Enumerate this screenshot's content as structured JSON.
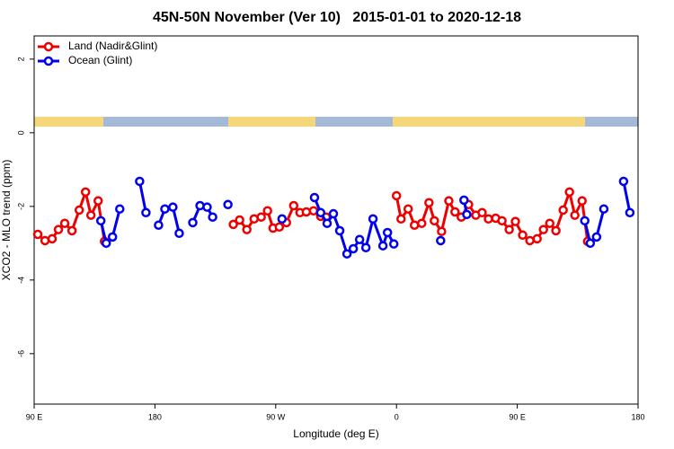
{
  "chart_data": {
    "type": "line",
    "title": "45N-50N November (Ver 10)   2015-01-01 to 2020-12-18",
    "x_label": "Longitude (deg E)",
    "y_label": "XCO2 - MLO trend (ppm)",
    "xlim": [
      90,
      540
    ],
    "xticks": [
      {
        "value": 90,
        "label": "90 E"
      },
      {
        "value": 180,
        "label": "180"
      },
      {
        "value": 270,
        "label": "90 W"
      },
      {
        "value": 360,
        "label": "0"
      },
      {
        "value": 450,
        "label": "90 E"
      },
      {
        "value": 540,
        "label": "180"
      }
    ],
    "ylim": [
      -7.37,
      2.63
    ],
    "yticks": [
      -6,
      -4,
      -2,
      0,
      2
    ],
    "legend": "top-left",
    "series": [
      {
        "name": "Land (Nadir&Glint)",
        "color": "#ee0000",
        "x": [
          92.7,
          98.1,
          103.4,
          108.1,
          112.8,
          118.2,
          123.6,
          128.3,
          132.3,
          137.7,
          142.4,
          null,
          238.4,
          243.1,
          248.5,
          253.9,
          259.2,
          263.9,
          268.0,
          272.7,
          278.0,
          283.4,
          288.1,
          292.8,
          298.2,
          303.5,
          307.6,
          null,
          360.0,
          363.4,
          368.7,
          373.4,
          378.8,
          384.2,
          388.2,
          393.6,
          399.0,
          403.6,
          408.3,
          413.7,
          419.1,
          423.8,
          428.5,
          433.9,
          438.6,
          444.0,
          448.6,
          454.0,
          459.4,
          464.8,
          469.5,
          474.2,
          478.8,
          484.2,
          488.9,
          492.9,
          498.3,
          502.4
        ],
        "values": [
          -2.76,
          -2.93,
          -2.88,
          -2.63,
          -2.46,
          -2.66,
          -2.1,
          -1.61,
          -2.24,
          -1.85,
          -2.95,
          null,
          -2.49,
          -2.37,
          -2.63,
          -2.34,
          -2.29,
          -2.12,
          -2.59,
          -2.56,
          -2.44,
          -1.98,
          -2.17,
          -2.15,
          -2.12,
          -2.27,
          -2.29,
          null,
          -1.71,
          -2.34,
          -2.07,
          -2.51,
          -2.46,
          -1.9,
          -2.39,
          -2.68,
          -1.85,
          -2.15,
          -2.29,
          -1.95,
          -2.24,
          -2.17,
          -2.34,
          -2.32,
          -2.39,
          -2.63,
          -2.41,
          -2.78,
          -2.93,
          -2.88,
          -2.63,
          -2.46,
          -2.66,
          -2.1,
          -1.61,
          -2.24,
          -1.85,
          -2.95
        ]
      },
      {
        "name": "Ocean (Glint)",
        "color": "#0000ee",
        "x": [
          139.7,
          143.7,
          148.4,
          153.8,
          null,
          168.6,
          173.3,
          null,
          182.7,
          187.4,
          193.4,
          198.1,
          null,
          208.2,
          213.6,
          218.9,
          223.0,
          null,
          234.4,
          null,
          274.7,
          null,
          298.9,
          303.5,
          308.3,
          313.0,
          317.7,
          323.1,
          327.8,
          332.5,
          337.2,
          342.5,
          349.9,
          353.3,
          358.0,
          null,
          392.9,
          null,
          410.3,
          412.4,
          null,
          500.3,
          504.4,
          509.1,
          514.5,
          null,
          529.2,
          533.9
        ],
        "values": [
          -2.39,
          -3.0,
          -2.83,
          -2.07,
          null,
          -1.32,
          -2.17,
          null,
          -2.51,
          -2.07,
          -2.02,
          -2.73,
          null,
          -2.44,
          -1.98,
          -2.02,
          -2.29,
          null,
          -1.95,
          null,
          -2.34,
          null,
          -1.76,
          -2.17,
          -2.46,
          -2.2,
          -2.66,
          -3.29,
          -3.15,
          -2.9,
          -3.12,
          -2.34,
          -3.07,
          -2.71,
          -3.02,
          null,
          -2.93,
          null,
          -1.83,
          -2.22,
          null,
          -2.39,
          -3.0,
          -2.83,
          -2.07,
          null,
          -1.32,
          -2.17
        ]
      }
    ]
  }
}
